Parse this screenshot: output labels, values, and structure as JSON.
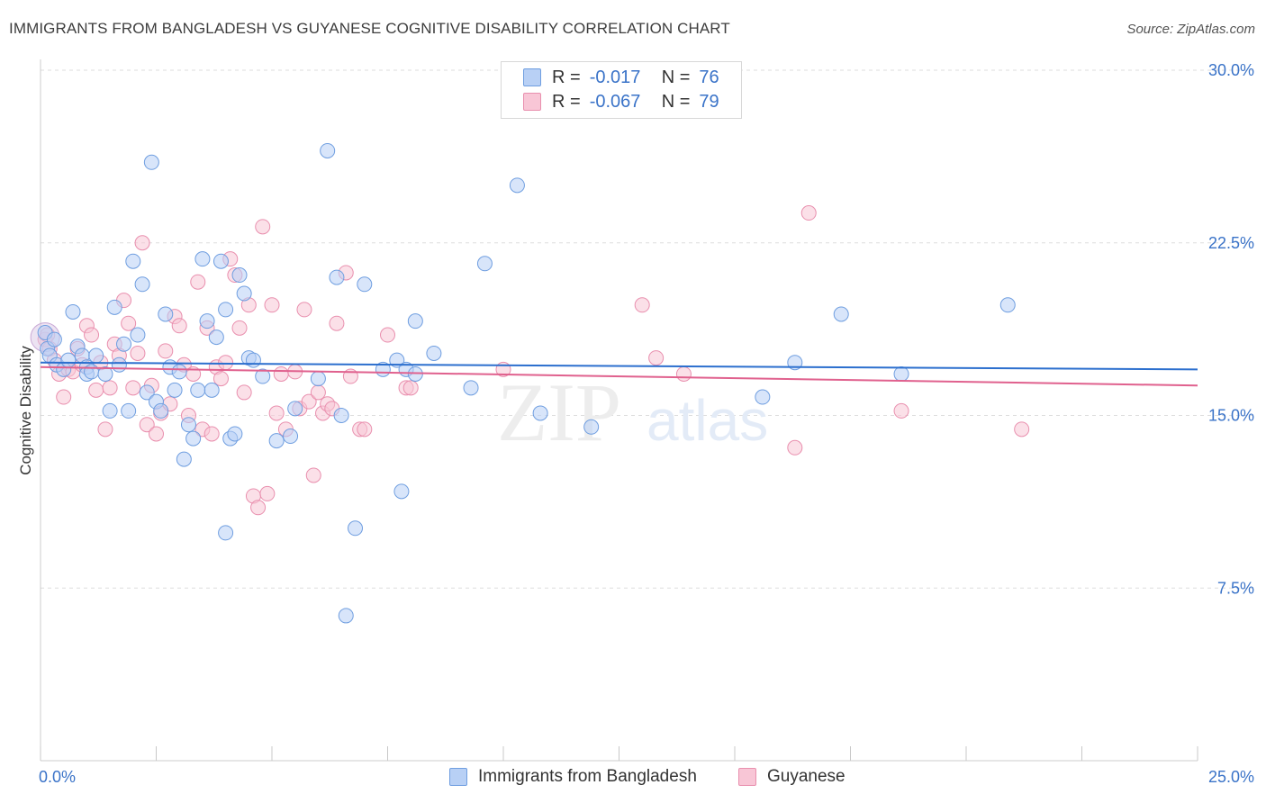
{
  "title": "IMMIGRANTS FROM BANGLADESH VS GUYANESE COGNITIVE DISABILITY CORRELATION CHART",
  "source": "Source: ZipAtlas.com",
  "watermark": {
    "zip": "ZIP",
    "atlas": "atlas"
  },
  "legend_top": {
    "rows": [
      {
        "r_label": "R =",
        "r_value": "-0.017",
        "n_label": "N =",
        "n_value": "76"
      },
      {
        "r_label": "R =",
        "r_value": "-0.067",
        "n_label": "N =",
        "n_value": "79"
      }
    ]
  },
  "colors": {
    "blue_fill": "#b8d0f5",
    "blue_stroke": "#6f9ee0",
    "blue_line": "#2c6fce",
    "pink_fill": "#f8c6d6",
    "pink_stroke": "#e98fae",
    "pink_line": "#e0618e",
    "tick_text": "#3a73c8",
    "grid": "#dddddd"
  },
  "chart_data": {
    "type": "scatter",
    "title": "IMMIGRANTS FROM BANGLADESH VS GUYANESE COGNITIVE DISABILITY CORRELATION CHART",
    "xlabel": "",
    "ylabel": "Cognitive Disability",
    "xlim": [
      0,
      25
    ],
    "ylim": [
      0,
      30
    ],
    "x_tick_labels": [
      "0.0%",
      "25.0%"
    ],
    "y_ticks": [
      7.5,
      15.0,
      22.5,
      30.0
    ],
    "y_tick_labels": [
      "7.5%",
      "15.0%",
      "22.5%",
      "30.0%"
    ],
    "grid": "horizontal dashed",
    "legend_position": "bottom",
    "series": [
      {
        "name": "Immigrants from Bangladesh",
        "R": -0.017,
        "N": 76,
        "trend": {
          "x": [
            0,
            25
          ],
          "y": [
            17.3,
            17.0
          ]
        },
        "points": [
          [
            0.1,
            18.6
          ],
          [
            0.15,
            17.9
          ],
          [
            0.2,
            17.6
          ],
          [
            0.3,
            18.3
          ],
          [
            0.35,
            17.2
          ],
          [
            0.5,
            17.0
          ],
          [
            0.6,
            17.4
          ],
          [
            0.7,
            19.5
          ],
          [
            0.8,
            18.0
          ],
          [
            0.9,
            17.6
          ],
          [
            1.0,
            17.1
          ],
          [
            1.0,
            16.8
          ],
          [
            1.1,
            16.9
          ],
          [
            1.2,
            17.6
          ],
          [
            1.4,
            16.8
          ],
          [
            1.5,
            15.2
          ],
          [
            1.6,
            19.7
          ],
          [
            1.7,
            17.2
          ],
          [
            1.8,
            18.1
          ],
          [
            1.9,
            15.2
          ],
          [
            2.0,
            21.7
          ],
          [
            2.1,
            18.5
          ],
          [
            2.2,
            20.7
          ],
          [
            2.3,
            16.0
          ],
          [
            2.4,
            26.0
          ],
          [
            2.5,
            15.6
          ],
          [
            2.6,
            15.2
          ],
          [
            2.7,
            19.4
          ],
          [
            2.8,
            17.1
          ],
          [
            2.9,
            16.1
          ],
          [
            3.0,
            16.9
          ],
          [
            3.1,
            13.1
          ],
          [
            3.2,
            14.6
          ],
          [
            3.3,
            14.0
          ],
          [
            3.4,
            16.1
          ],
          [
            3.5,
            21.8
          ],
          [
            3.6,
            19.1
          ],
          [
            3.7,
            16.1
          ],
          [
            3.8,
            18.4
          ],
          [
            3.9,
            21.7
          ],
          [
            4.0,
            19.6
          ],
          [
            4.0,
            9.9
          ],
          [
            4.1,
            14.0
          ],
          [
            4.2,
            14.2
          ],
          [
            4.3,
            21.1
          ],
          [
            4.4,
            20.3
          ],
          [
            4.5,
            17.5
          ],
          [
            4.6,
            17.4
          ],
          [
            4.8,
            16.7
          ],
          [
            5.1,
            13.9
          ],
          [
            5.4,
            14.1
          ],
          [
            5.5,
            15.3
          ],
          [
            6.0,
            16.6
          ],
          [
            6.2,
            26.5
          ],
          [
            6.4,
            21.0
          ],
          [
            6.5,
            15.0
          ],
          [
            6.6,
            6.3
          ],
          [
            6.8,
            10.1
          ],
          [
            7.0,
            20.7
          ],
          [
            7.4,
            17.0
          ],
          [
            7.7,
            17.4
          ],
          [
            7.8,
            11.7
          ],
          [
            7.9,
            17.0
          ],
          [
            8.1,
            16.8
          ],
          [
            8.1,
            19.1
          ],
          [
            8.5,
            17.7
          ],
          [
            9.3,
            16.2
          ],
          [
            9.6,
            21.6
          ],
          [
            10.3,
            25.0
          ],
          [
            10.8,
            15.1
          ],
          [
            11.9,
            14.5
          ],
          [
            15.6,
            15.8
          ],
          [
            16.3,
            17.3
          ],
          [
            17.3,
            19.4
          ],
          [
            18.6,
            16.8
          ],
          [
            20.9,
            19.8
          ]
        ]
      },
      {
        "name": "Guyanese",
        "R": -0.067,
        "N": 79,
        "trend": {
          "x": [
            0,
            25
          ],
          "y": [
            17.1,
            16.3
          ]
        },
        "points": [
          [
            0.1,
            18.3
          ],
          [
            0.2,
            17.9
          ],
          [
            0.3,
            17.4
          ],
          [
            0.4,
            16.8
          ],
          [
            0.5,
            15.8
          ],
          [
            0.6,
            17.0
          ],
          [
            0.7,
            16.9
          ],
          [
            0.8,
            17.9
          ],
          [
            0.9,
            17.2
          ],
          [
            1.0,
            18.9
          ],
          [
            1.1,
            18.5
          ],
          [
            1.2,
            16.1
          ],
          [
            1.3,
            17.3
          ],
          [
            1.4,
            14.4
          ],
          [
            1.5,
            16.2
          ],
          [
            1.6,
            18.1
          ],
          [
            1.7,
            17.6
          ],
          [
            1.8,
            20.0
          ],
          [
            1.9,
            19.0
          ],
          [
            2.0,
            16.2
          ],
          [
            2.1,
            17.7
          ],
          [
            2.2,
            22.5
          ],
          [
            2.3,
            14.6
          ],
          [
            2.4,
            16.3
          ],
          [
            2.5,
            14.2
          ],
          [
            2.6,
            15.1
          ],
          [
            2.7,
            17.8
          ],
          [
            2.8,
            15.5
          ],
          [
            2.9,
            19.3
          ],
          [
            3.0,
            18.9
          ],
          [
            3.1,
            17.2
          ],
          [
            3.2,
            15.0
          ],
          [
            3.3,
            16.8
          ],
          [
            3.4,
            20.8
          ],
          [
            3.5,
            14.4
          ],
          [
            3.6,
            18.8
          ],
          [
            3.7,
            14.2
          ],
          [
            3.8,
            17.1
          ],
          [
            3.9,
            16.6
          ],
          [
            4.0,
            17.3
          ],
          [
            4.1,
            21.8
          ],
          [
            4.2,
            21.1
          ],
          [
            4.3,
            18.8
          ],
          [
            4.4,
            16.0
          ],
          [
            4.5,
            19.8
          ],
          [
            4.6,
            11.5
          ],
          [
            4.7,
            11.0
          ],
          [
            4.8,
            23.2
          ],
          [
            4.9,
            11.6
          ],
          [
            5.0,
            19.8
          ],
          [
            5.1,
            15.1
          ],
          [
            5.2,
            16.8
          ],
          [
            5.3,
            14.4
          ],
          [
            5.5,
            16.9
          ],
          [
            5.6,
            15.3
          ],
          [
            5.7,
            19.6
          ],
          [
            5.8,
            15.6
          ],
          [
            5.9,
            12.4
          ],
          [
            6.0,
            16.0
          ],
          [
            6.1,
            15.1
          ],
          [
            6.2,
            15.5
          ],
          [
            6.3,
            15.3
          ],
          [
            6.4,
            19.0
          ],
          [
            6.6,
            21.2
          ],
          [
            6.7,
            16.7
          ],
          [
            6.9,
            14.4
          ],
          [
            7.0,
            14.4
          ],
          [
            7.5,
            18.5
          ],
          [
            7.9,
            16.2
          ],
          [
            8.0,
            16.2
          ],
          [
            10.0,
            17.0
          ],
          [
            13.0,
            19.8
          ],
          [
            13.3,
            17.5
          ],
          [
            13.9,
            16.8
          ],
          [
            16.3,
            13.6
          ],
          [
            16.6,
            23.8
          ],
          [
            18.6,
            15.2
          ],
          [
            21.2,
            14.4
          ],
          [
            0.15,
            18.5
          ]
        ]
      }
    ]
  },
  "bottom_legend": [
    {
      "label": "Immigrants from Bangladesh"
    },
    {
      "label": "Guyanese"
    }
  ]
}
